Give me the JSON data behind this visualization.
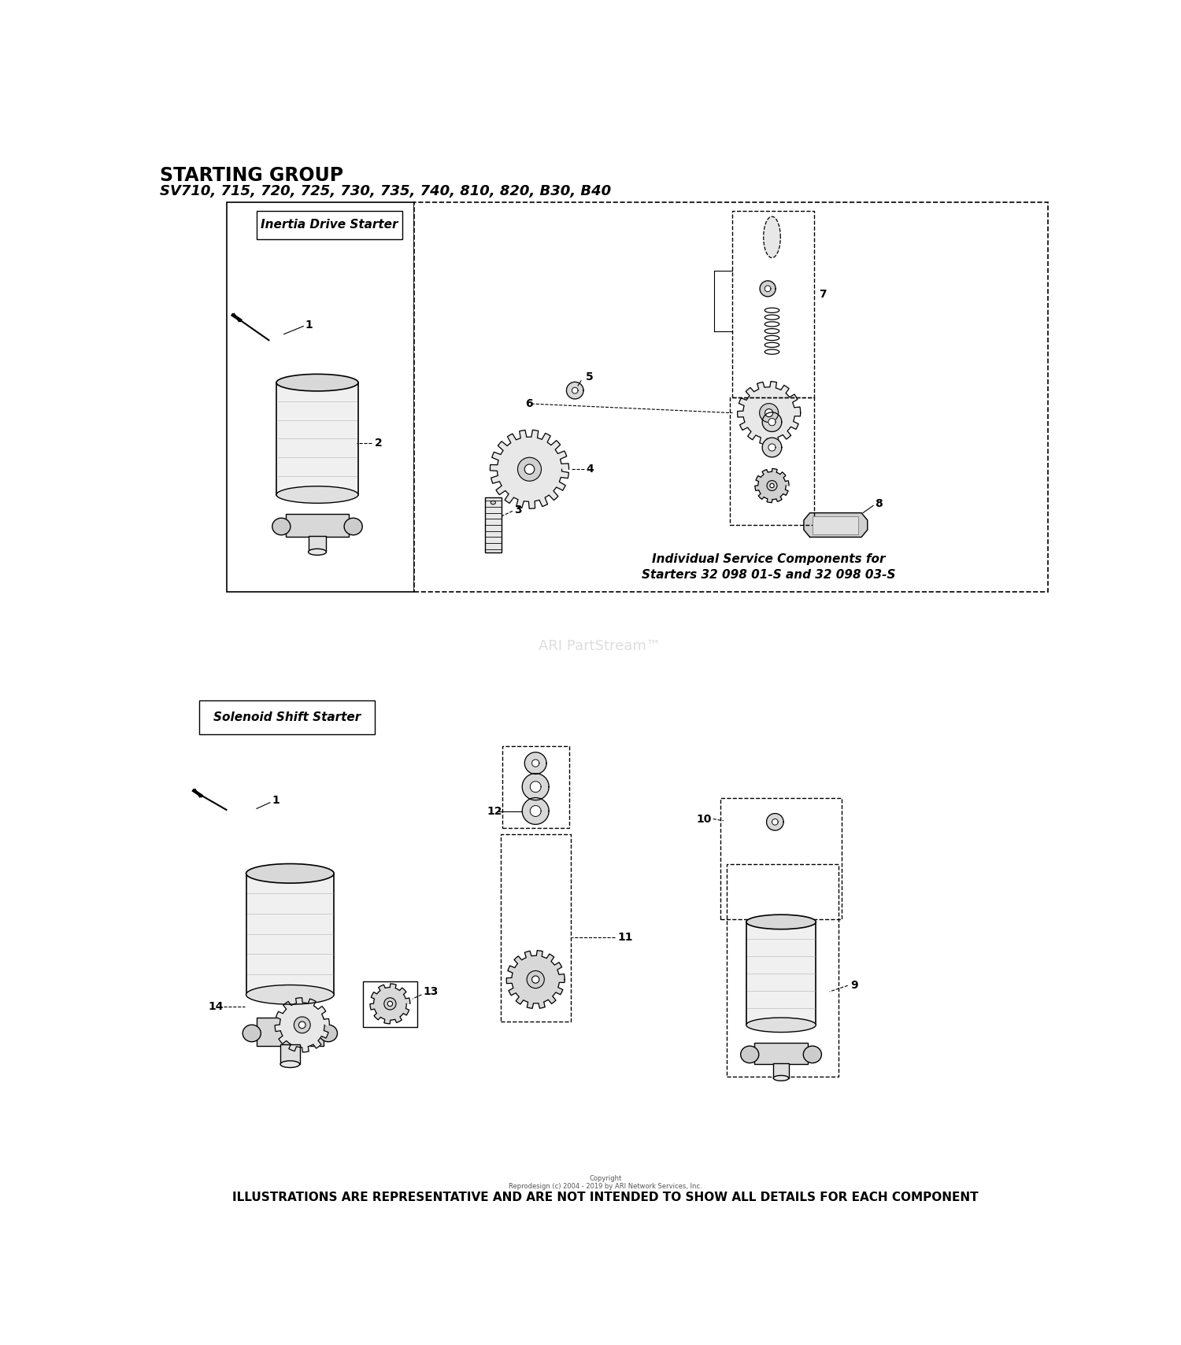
{
  "title_line1": "STARTING GROUP",
  "title_line2": "SV710, 715, 720, 725, 730, 735, 740, 810, 820, B30, B40",
  "footer_text": "ILLUSTRATIONS ARE REPRESENTATIVE AND ARE NOT INTENDED TO SHOW ALL DETAILS FOR EACH COMPONENT",
  "copyright_text": "Copyright\nReprodesign (c) 2004 - 2019 by ARI Network Services, Inc.",
  "watermark_text": "ARI PartStream™",
  "section1_label": "Inertia Drive Starter",
  "section2_label": "Solenoid Shift Starter",
  "service_text_line1": "Individual Service Components for",
  "service_text_line2": "Starters 32 098 01-S and 32 098 03-S",
  "bg_color": "#ffffff"
}
